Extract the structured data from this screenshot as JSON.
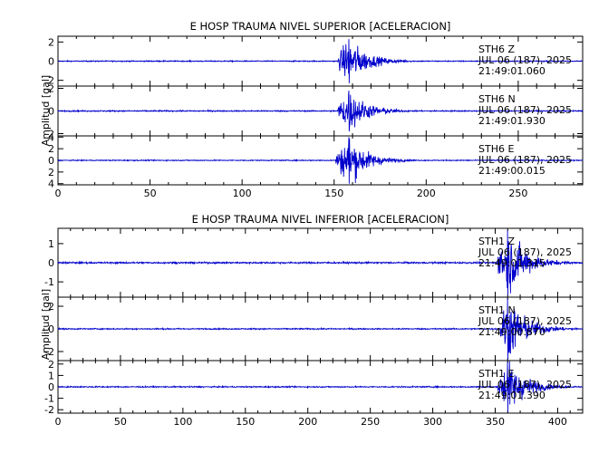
{
  "chart_data": [
    {
      "type": "line",
      "title": "E HOSP TRAUMA NIVEL SUPERIOR [ACELERACION]",
      "ylabel": "Amplitud [gal]",
      "xlabel": "",
      "xlim": [
        0,
        285
      ],
      "x_ticks": [
        "0",
        "50",
        "100",
        "150",
        "200",
        "250"
      ],
      "x_tick_values": [
        0,
        50,
        100,
        150,
        200,
        250
      ],
      "grid": false,
      "line_color": "#0000cc",
      "panels": [
        {
          "component": "Z",
          "ylim": [
            -2.6,
            2.6
          ],
          "y_ticks": [
            -2,
            0,
            2
          ],
          "y_tick_labels": [
            "2",
            "0",
            "2"
          ],
          "annotation": [
            "STH6   Z",
            "JUL 06 (187), 2025",
            "21:49:01.060"
          ],
          "event_onset": 152,
          "event_peak_time": 158,
          "peak_amplitude": 2.3,
          "noise_amplitude": 0.05
        },
        {
          "component": "N",
          "ylim": [
            -2.2,
            2.2
          ],
          "y_ticks": [
            -2,
            0,
            2
          ],
          "y_tick_labels": [
            "2",
            "0",
            "2"
          ],
          "annotation": [
            "STH6   N",
            "JUL 06 (187), 2025",
            "21:49:01.930"
          ],
          "event_onset": 152,
          "event_peak_time": 158,
          "peak_amplitude": 1.8,
          "noise_amplitude": 0.05
        },
        {
          "component": "E",
          "ylim": [
            -4.2,
            4.2
          ],
          "y_ticks": [
            -4,
            -2,
            0,
            2,
            4
          ],
          "y_tick_labels": [
            "4",
            "2",
            "0",
            "2",
            "4"
          ],
          "annotation": [
            "STH6   E",
            "JUL 06 (187), 2025",
            "21:49:00.015"
          ],
          "event_onset": 151,
          "event_peak_time": 158,
          "peak_amplitude": 4.0,
          "noise_amplitude": 0.08
        }
      ]
    },
    {
      "type": "line",
      "title": "E HOSP TRAUMA NIVEL INFERIOR [ACELERACION]",
      "ylabel": "Amplitud [gal]",
      "xlabel": "",
      "xlim": [
        0,
        420
      ],
      "x_ticks": [
        "0",
        "50",
        "100",
        "150",
        "200",
        "250",
        "300",
        "350",
        "400"
      ],
      "x_tick_values": [
        0,
        50,
        100,
        150,
        200,
        250,
        300,
        350,
        400
      ],
      "grid": false,
      "line_color": "#0000cc",
      "panels": [
        {
          "component": "Z",
          "ylim": [
            -1.8,
            1.8
          ],
          "y_ticks": [
            -1,
            0,
            1
          ],
          "y_tick_labels": [
            "-1",
            "0",
            "1"
          ],
          "annotation": [
            "STH1   Z",
            "JUL 06 (187), 2025",
            "21:49:01.315"
          ],
          "event_onset": 352,
          "event_peak_time": 360,
          "peak_amplitude": 1.7,
          "noise_amplitude": 0.04
        },
        {
          "component": "N",
          "ylim": [
            -2.8,
            2.8
          ],
          "y_ticks": [
            -2,
            0,
            2
          ],
          "y_tick_labels": [
            "-2",
            "0",
            "2"
          ],
          "annotation": [
            "STH1   N",
            "JUL 06 (187), 2025",
            "21:49:00.870"
          ],
          "event_onset": 354,
          "event_peak_time": 360,
          "peak_amplitude": 2.7,
          "noise_amplitude": 0.05
        },
        {
          "component": "E",
          "ylim": [
            -2.3,
            2.3
          ],
          "y_ticks": [
            -2,
            -1,
            0,
            1,
            2
          ],
          "y_tick_labels": [
            "-2",
            "-1",
            "0",
            "1",
            "2"
          ],
          "annotation": [
            "STH1   E",
            "JUL 06 (187), 2025",
            "21:49:01.390"
          ],
          "event_onset": 352,
          "event_peak_time": 360,
          "peak_amplitude": 2.2,
          "noise_amplitude": 0.05
        }
      ]
    }
  ]
}
